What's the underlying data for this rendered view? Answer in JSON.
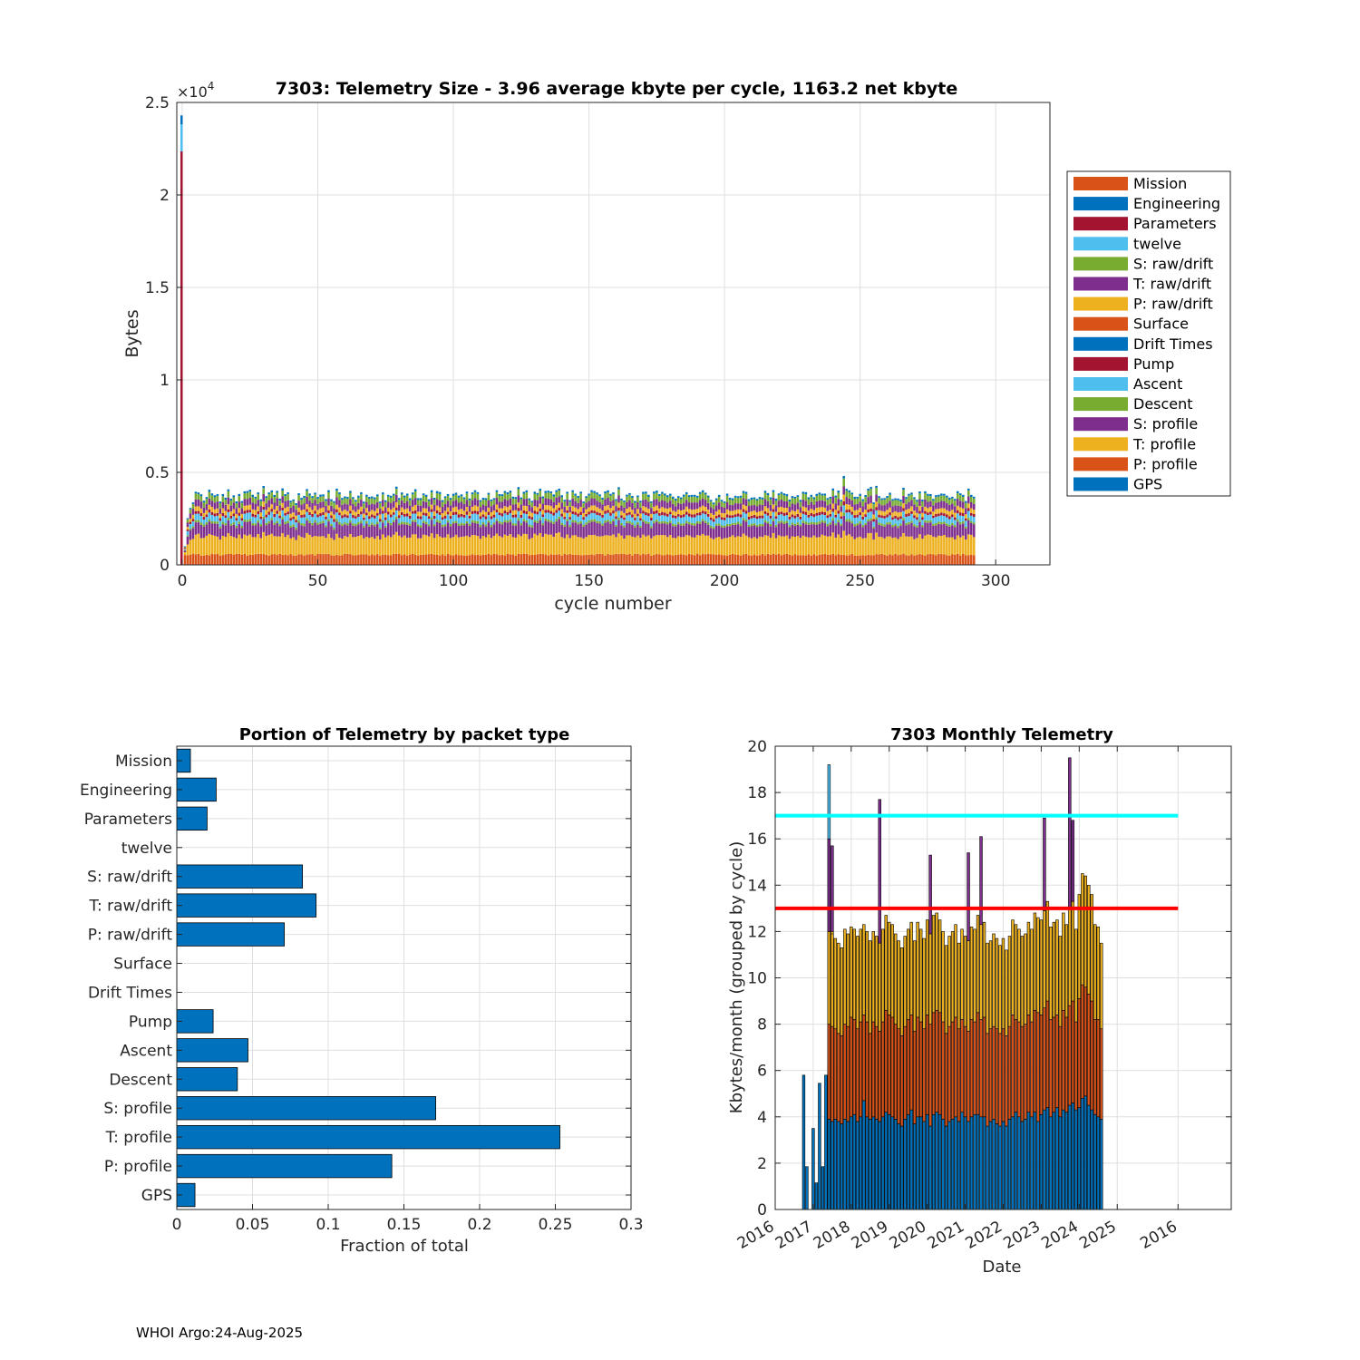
{
  "footer": "WHOI Argo:24-Aug-2025",
  "colors": {
    "orange": "#D95319",
    "blue": "#0072BD",
    "crimson": "#A2142F",
    "sky": "#4DBEEE",
    "green": "#77AC30",
    "purple": "#7E2F8E",
    "gold": "#EDB120",
    "grid": "#dfdfdf",
    "cyan_line": "#00FFFF",
    "red_line": "#FF0000"
  },
  "chart_data": [
    {
      "type": "bar",
      "stacked": true,
      "title": "7303: Telemetry Size - 3.96 average kbyte per cycle, 1163.2 net kbyte",
      "xlabel": "cycle number",
      "ylabel": "Bytes",
      "exponent_label": "×10",
      "exponent_power": "4",
      "xlim": [
        -2,
        320
      ],
      "ylim": [
        0,
        25000
      ],
      "xticks": [
        0,
        50,
        100,
        150,
        200,
        250,
        300
      ],
      "yticks": [
        0,
        5000,
        10000,
        15000,
        20000,
        25000
      ],
      "ytick_labels": [
        "0",
        "0.5",
        "1",
        "1.5",
        "2",
        "2.5"
      ],
      "grid": true,
      "legend_position": "outside-right",
      "legend": [
        "Mission",
        "Engineering",
        "Parameters",
        "twelve",
        "S: raw/drift",
        "T: raw/drift",
        "P: raw/drift",
        "Surface",
        "Drift Times",
        "Pump",
        "Ascent",
        "Descent",
        "S: profile",
        "T: profile",
        "P: profile",
        "GPS"
      ],
      "legend_colors": [
        "orange",
        "blue",
        "crimson",
        "sky",
        "green",
        "purple",
        "gold",
        "orange",
        "blue",
        "crimson",
        "sky",
        "green",
        "purple",
        "gold",
        "orange",
        "blue"
      ],
      "cycles": {
        "first": 1,
        "last": 292
      },
      "initial_cycle_total_bytes": 24300,
      "typical_stack_bytes": {
        "P: profile": 550,
        "T: profile": 1000,
        "S: profile": 650,
        "Descent": 120,
        "Ascent": 320,
        "Pump": 150,
        "P: raw/drift": 250,
        "T: raw/drift": 350,
        "S: raw/drift": 300,
        "Engineering": 100
      },
      "typical_total_bytes": 3800,
      "max_total_bytes_after_deploy": 5200
    },
    {
      "type": "bar",
      "orientation": "horizontal",
      "title": "Portion of Telemetry by packet type",
      "xlabel": "Fraction of total",
      "xlim": [
        0,
        0.3
      ],
      "xticks": [
        0,
        0.05,
        0.1,
        0.15,
        0.2,
        0.25,
        0.3
      ],
      "xtick_labels": [
        "0",
        "0.05",
        "0.1",
        "0.15",
        "0.2",
        "0.25",
        "0.3"
      ],
      "categories": [
        "Mission",
        "Engineering",
        "Parameters",
        "twelve",
        "S: raw/drift",
        "T: raw/drift",
        "P: raw/drift",
        "Surface",
        "Drift Times",
        "Pump",
        "Ascent",
        "Descent",
        "S: profile",
        "T: profile",
        "P: profile",
        "GPS"
      ],
      "values": [
        0.009,
        0.026,
        0.02,
        0,
        0.083,
        0.092,
        0.071,
        0,
        0,
        0.024,
        0.047,
        0.04,
        0.171,
        0.253,
        0.142,
        0.012
      ],
      "bar_color": "blue",
      "grid": true
    },
    {
      "type": "bar",
      "stacked": true,
      "title": "7303 Monthly Telemetry",
      "xlabel": "Date",
      "ylabel": "Kbytes/month (grouped by cycle)",
      "ylim": [
        0,
        20
      ],
      "yticks": [
        0,
        2,
        4,
        6,
        8,
        10,
        12,
        14,
        16,
        18,
        20
      ],
      "xtick_labels": [
        "2016",
        "2017",
        "2018",
        "2019",
        "2020",
        "2021",
        "2022",
        "2023",
        "2024",
        "2025",
        "2016"
      ],
      "xlim_years": [
        2016.0,
        2028.0
      ],
      "reference_lines": [
        {
          "y": 17,
          "color": "cyan_line"
        },
        {
          "y": 13,
          "color": "red_line"
        }
      ],
      "early_months": {
        "start_year": 2016.75,
        "totals": [
          5.8,
          1.85,
          0,
          3.5,
          1.15,
          5.45,
          1.85,
          5.8,
          19.2,
          15.7
        ]
      },
      "monthly": {
        "start_year": 2017.333,
        "totals": [
          12.0,
          11.9,
          11.7,
          11.5,
          11.3,
          12.1,
          11.9,
          12.2,
          12.1,
          11.8,
          12.1,
          12.3,
          12.0,
          11.6,
          12.0,
          11.8,
          11.5,
          12.1,
          12.7,
          12.4,
          12.3,
          11.9,
          11.6,
          11.3,
          11.8,
          12.1,
          12.4,
          11.6,
          12.4,
          12.1,
          11.7,
          12.5,
          11.9,
          12.7,
          12.8,
          12.5,
          12.0,
          11.4,
          11.8,
          12.0,
          12.3,
          11.5,
          12.1,
          11.8,
          11.6,
          12.2,
          12.1,
          12.7,
          12.3,
          12.4,
          11.5,
          11.6,
          11.9,
          11.7,
          11.4,
          11.7,
          11.2,
          11.8,
          12.5,
          12.3,
          12.1,
          11.8,
          11.9,
          12.4,
          12.1,
          12.8,
          12.6,
          12.5,
          12.9,
          13.3,
          12.2,
          12.4,
          12.5,
          11.8,
          12.8,
          12.3,
          13.0,
          13.3,
          12.1,
          13.6,
          14.5,
          14.4,
          14.0,
          13.6,
          12.3,
          12.2,
          11.5
        ],
        "base": [
          3.9,
          3.8,
          3.9,
          3.8,
          3.7,
          3.9,
          3.8,
          4.0,
          4.1,
          3.8,
          4.0,
          4.7,
          4.0,
          3.9,
          4.0,
          3.9,
          3.8,
          4.0,
          4.2,
          4.1,
          4.0,
          3.9,
          3.7,
          3.6,
          3.9,
          4.1,
          4.3,
          3.7,
          4.0,
          4.0,
          3.8,
          4.1,
          3.6,
          4.1,
          4.2,
          4.1,
          3.9,
          3.6,
          3.8,
          3.9,
          4.0,
          3.8,
          4.2,
          4.0,
          3.8,
          4.0,
          4.1,
          4.1,
          4.0,
          4.0,
          3.6,
          3.8,
          3.9,
          3.7,
          3.6,
          3.8,
          3.6,
          3.9,
          4.0,
          4.2,
          4.0,
          3.8,
          3.9,
          4.2,
          4.0,
          4.2,
          3.8,
          4.1,
          4.3,
          4.4,
          4.0,
          4.2,
          4.4,
          4.0,
          4.3,
          4.2,
          4.5,
          4.6,
          4.3,
          4.4,
          4.8,
          4.9,
          4.5,
          4.3,
          4.1,
          4.0,
          3.9
        ],
        "mid": [
          8.0,
          7.9,
          7.8,
          7.6,
          7.5,
          8.0,
          7.9,
          8.3,
          8.2,
          7.8,
          8.1,
          8.4,
          8.1,
          7.6,
          8.1,
          7.9,
          7.7,
          8.1,
          8.6,
          8.4,
          8.3,
          8.0,
          7.8,
          7.5,
          7.9,
          8.2,
          8.4,
          7.7,
          8.3,
          8.1,
          7.8,
          8.4,
          8.0,
          8.5,
          8.6,
          8.5,
          8.1,
          7.6,
          7.9,
          8.1,
          8.3,
          7.8,
          8.2,
          7.9,
          7.7,
          8.2,
          8.1,
          8.5,
          8.2,
          8.3,
          7.6,
          7.8,
          7.9,
          7.8,
          7.6,
          7.8,
          7.5,
          7.9,
          8.4,
          8.2,
          8.1,
          7.9,
          8.0,
          8.4,
          8.1,
          8.6,
          8.5,
          8.4,
          8.7,
          9.0,
          8.2,
          8.3,
          8.4,
          7.9,
          8.6,
          8.3,
          8.8,
          9.0,
          8.1,
          9.1,
          9.7,
          9.6,
          9.3,
          9.0,
          8.2,
          8.2,
          7.8
        ],
        "spikes": [
          {
            "index": 0,
            "top": 16.0
          },
          {
            "index": 16,
            "top": 17.7
          },
          {
            "index": 32,
            "top": 15.3
          },
          {
            "index": 44,
            "top": 15.4
          },
          {
            "index": 48,
            "top": 16.1
          },
          {
            "index": 68,
            "top": 16.9
          },
          {
            "index": 76,
            "top": 19.5
          },
          {
            "index": 77,
            "top": 16.8
          }
        ]
      }
    }
  ]
}
